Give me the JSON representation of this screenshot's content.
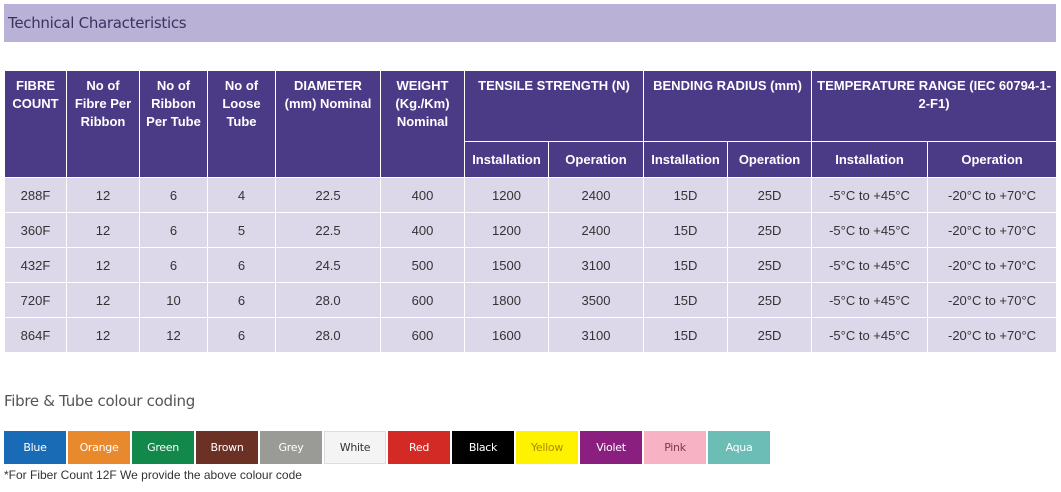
{
  "section_title": "Technical Characteristics",
  "table": {
    "headers": {
      "fibre_count": "FIBRE COUNT",
      "fibre_per_ribbon": "No of Fibre Per Ribbon",
      "ribbon_per_tube": "No of Ribbon Per Tube",
      "loose_tube": "No of Loose Tube",
      "diameter": "DIAMETER (mm) Nominal",
      "weight": "WEIGHT (Kg./Km) Nominal",
      "tensile": "TENSILE STRENGTH (N)",
      "bending": "BENDING RADIUS (mm)",
      "temperature": "TEMPERATURE RANGE (IEC 60794-1-2-F1)",
      "installation": "Installation",
      "operation": "Operation"
    },
    "rows": [
      [
        "288F",
        "12",
        "6",
        "4",
        "22.5",
        "400",
        "1200",
        "2400",
        "15D",
        "25D",
        "-5°C to +45°C",
        "-20°C to +70°C"
      ],
      [
        "360F",
        "12",
        "6",
        "5",
        "22.5",
        "400",
        "1200",
        "2400",
        "15D",
        "25D",
        "-5°C to +45°C",
        "-20°C to +70°C"
      ],
      [
        "432F",
        "12",
        "6",
        "6",
        "24.5",
        "500",
        "1500",
        "3100",
        "15D",
        "25D",
        "-5°C to +45°C",
        "-20°C to +70°C"
      ],
      [
        "720F",
        "12",
        "10",
        "6",
        "28.0",
        "600",
        "1800",
        "3500",
        "15D",
        "25D",
        "-5°C to +45°C",
        "-20°C to +70°C"
      ],
      [
        "864F",
        "12",
        "12",
        "6",
        "28.0",
        "600",
        "1600",
        "3100",
        "15D",
        "25D",
        "-5°C to +45°C",
        "-20°C to +70°C"
      ]
    ]
  },
  "colour_coding": {
    "title": "Fibre & Tube colour coding",
    "swatches": [
      {
        "label": "Blue",
        "bg": "#1a6bb5",
        "fg": "#ffffff"
      },
      {
        "label": "Orange",
        "bg": "#e8892e",
        "fg": "#ffffff"
      },
      {
        "label": "Green",
        "bg": "#12894a",
        "fg": "#ffffff"
      },
      {
        "label": "Brown",
        "bg": "#6b3124",
        "fg": "#ffffff"
      },
      {
        "label": "Grey",
        "bg": "#9a9a96",
        "fg": "#ffffff"
      },
      {
        "label": "White",
        "bg": "#f4f4f4",
        "fg": "#333333"
      },
      {
        "label": "Red",
        "bg": "#d42a26",
        "fg": "#ffffff"
      },
      {
        "label": "Black",
        "bg": "#000000",
        "fg": "#ffffff"
      },
      {
        "label": "Yellow",
        "bg": "#fff200",
        "fg": "#b08a00"
      },
      {
        "label": "Violet",
        "bg": "#8b1f7f",
        "fg": "#ffffff"
      },
      {
        "label": "Pink",
        "bg": "#f7b3c4",
        "fg": "#7a3a4a"
      },
      {
        "label": "Aqua",
        "bg": "#6cbdb6",
        "fg": "#ffffff"
      }
    ],
    "footnote": "*For Fiber Count 12F We provide the above colour code"
  }
}
